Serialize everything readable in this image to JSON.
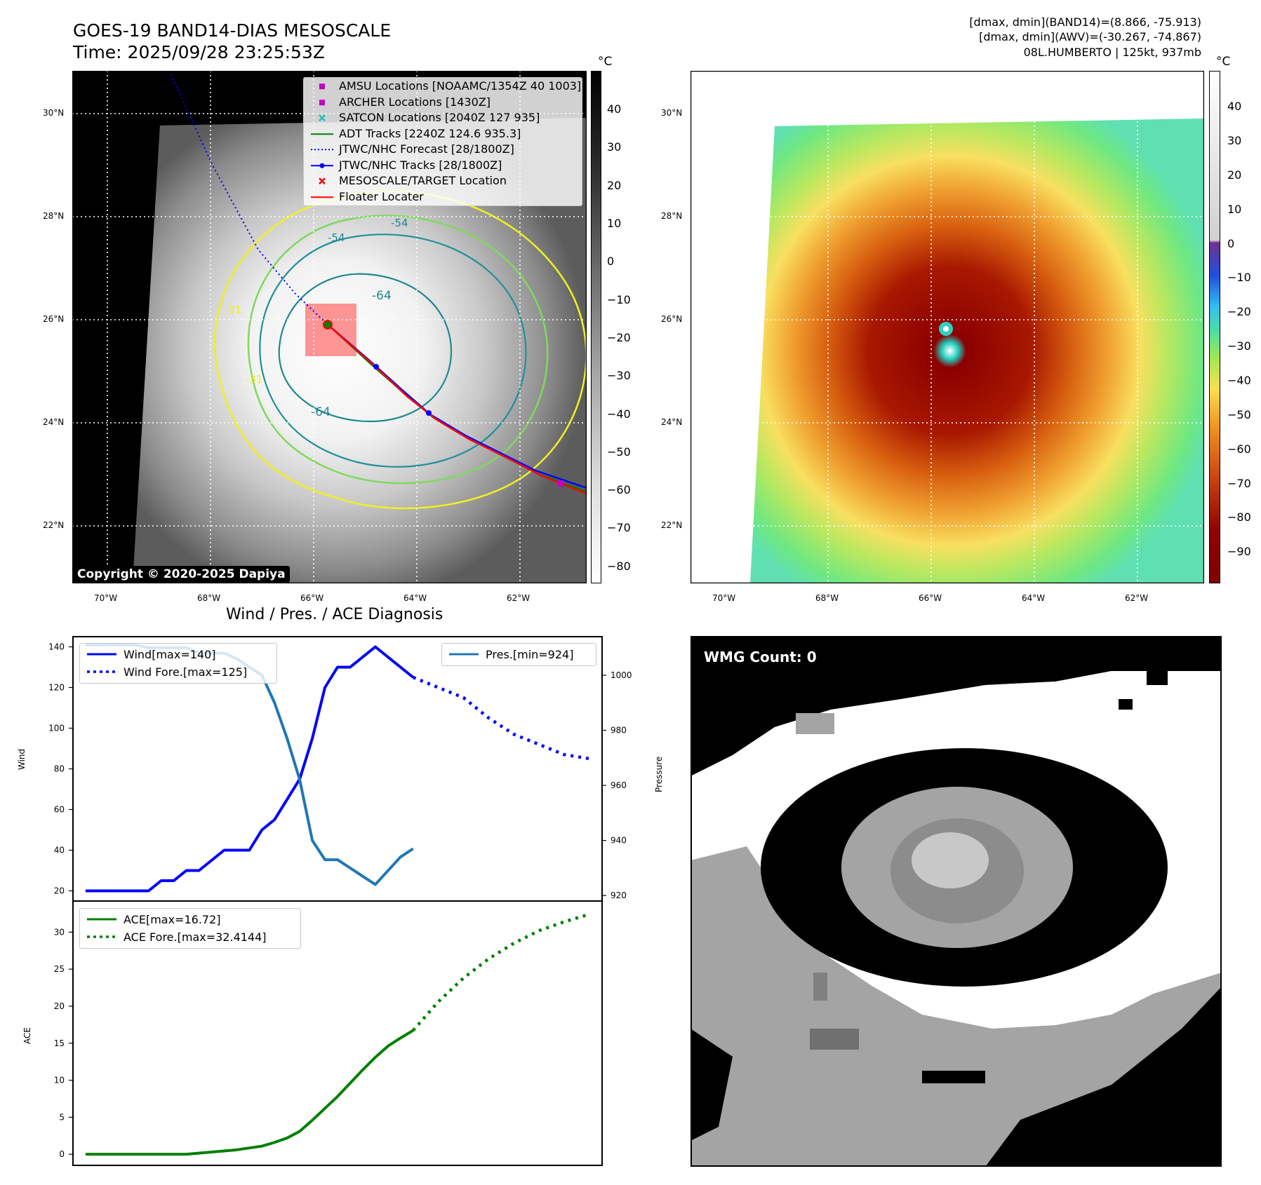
{
  "header": {
    "title_line1": "GOES-19 BAND14-DIAS MESOSCALE",
    "title_line2": "Time: 2025/09/28 23:25:53Z",
    "stats_line1": "[dmax, dmin](BAND14)=(8.866, -75.913)",
    "stats_line2": "[dmax, dmin](AWV)=(-30.267, -74.867)",
    "stats_line3": "08L.HUMBERTO | 125kt, 937mb"
  },
  "map": {
    "lat_ticks": [
      "30°N",
      "28°N",
      "26°N",
      "24°N",
      "22°N"
    ],
    "lon_ticks": [
      "70°W",
      "68°W",
      "66°W",
      "64°W",
      "62°W"
    ],
    "contour_labels": [
      "-54",
      "-64",
      "-64",
      "-31",
      "-31",
      "-54"
    ],
    "legend": [
      {
        "label": "AMSU Locations [NOAAMC/1354Z 40 1003]",
        "symbol": "square",
        "color": "#c000c0"
      },
      {
        "label": "ARCHER Locations [1430Z]",
        "symbol": "square",
        "color": "#c000c0"
      },
      {
        "label": "SATCON Locations [2040Z 127 935]",
        "symbol": "x",
        "color": "#20c0c0"
      },
      {
        "label": "ADT Tracks [2240Z 124.6 935.3]",
        "symbol": "line",
        "color": "#008000"
      },
      {
        "label": "JTWC/NHC Forecast [28/1800Z]",
        "symbol": "dotted",
        "color": "#0000ff"
      },
      {
        "label": "JTWC/NHC Tracks [28/1800Z]",
        "symbol": "line-dot",
        "color": "#0000ff"
      },
      {
        "label": "MESOSCALE/TARGET Location",
        "symbol": "x",
        "color": "#ff0000"
      },
      {
        "label": "Floater Locater",
        "symbol": "line",
        "color": "#ff0000"
      }
    ],
    "copyright": "Copyright © 2020-2025 Dapiya"
  },
  "colorbar_left": {
    "unit": "°C",
    "ticks": [
      "40",
      "30",
      "20",
      "10",
      "0",
      "−10",
      "−20",
      "−30",
      "−40",
      "−50",
      "−60",
      "−70",
      "−80"
    ]
  },
  "colorbar_right": {
    "unit": "°C",
    "ticks": [
      "40",
      "30",
      "20",
      "10",
      "0",
      "−10",
      "−20",
      "−30",
      "−40",
      "−50",
      "−60",
      "−70",
      "−80",
      "−90"
    ]
  },
  "diagnosis": {
    "title": "Wind / Pres. / ACE Diagnosis",
    "wind_ylabel": "Wind",
    "pressure_ylabel": "Pressure",
    "ace_ylabel": "ACE",
    "legend_wind": "Wind[max=140]",
    "legend_wind_fore": "Wind Fore.[max=125]",
    "legend_pres": "Pres.[min=924]",
    "legend_ace": "ACE[max=16.72]",
    "legend_ace_fore": "ACE Fore.[max=32.4144]"
  },
  "wmg": {
    "label": "WMG Count: 0"
  },
  "chart_data": [
    {
      "type": "line",
      "title": "Wind / Pres. / ACE Diagnosis",
      "ylabel": "Wind",
      "ylim": [
        15,
        145
      ],
      "y_ticks": [
        20,
        40,
        60,
        80,
        100,
        120,
        140
      ],
      "series": [
        {
          "name": "Wind[max=140]",
          "color": "#0000ff",
          "style": "solid",
          "x": [
            0,
            1,
            2,
            3,
            4,
            5,
            6,
            7,
            8,
            9,
            10,
            11,
            12,
            13,
            14,
            15,
            16,
            17,
            18,
            19,
            20,
            21,
            22,
            23,
            24,
            25,
            26
          ],
          "values": [
            20,
            20,
            20,
            20,
            20,
            20,
            25,
            25,
            30,
            30,
            35,
            40,
            40,
            40,
            50,
            55,
            65,
            75,
            95,
            120,
            130,
            130,
            135,
            140,
            135,
            130,
            125
          ]
        },
        {
          "name": "Wind Fore.[max=125]",
          "color": "#0000ff",
          "style": "dotted",
          "x": [
            26,
            28,
            30,
            32,
            34,
            36,
            38,
            40
          ],
          "values": [
            125,
            120,
            115,
            105,
            97,
            92,
            87,
            85
          ]
        }
      ],
      "secondary": {
        "ylabel": "Pressure",
        "ylim": [
          918,
          1014
        ],
        "y_ticks": [
          920,
          940,
          960,
          980,
          1000
        ],
        "series": [
          {
            "name": "Pres.[min=924]",
            "color": "#1f77b4",
            "style": "solid",
            "x": [
              0,
              1,
              2,
              3,
              4,
              5,
              6,
              7,
              8,
              9,
              10,
              11,
              12,
              13,
              14,
              15,
              16,
              17,
              18,
              19,
              20,
              21,
              22,
              23,
              24,
              25,
              26
            ],
            "values": [
              1011,
              1011,
              1011,
              1011,
              1011,
              1010,
              1010,
              1010,
              1010,
              1008,
              1008,
              1008,
              1006,
              1003,
              1000,
              990,
              977,
              962,
              940,
              933,
              933,
              930,
              927,
              924,
              929,
              934,
              937
            ]
          }
        ]
      }
    },
    {
      "type": "line",
      "ylabel": "ACE",
      "ylim": [
        -1.5,
        34.2
      ],
      "y_ticks": [
        0,
        5,
        10,
        15,
        20,
        25,
        30
      ],
      "series": [
        {
          "name": "ACE[max=16.72]",
          "color": "#008000",
          "style": "solid",
          "x": [
            0,
            2,
            4,
            6,
            8,
            10,
            12,
            14,
            15,
            16,
            17,
            18,
            19,
            20,
            21,
            22,
            23,
            24,
            25,
            26
          ],
          "values": [
            0,
            0,
            0,
            0,
            0,
            0.3,
            0.6,
            1.1,
            1.6,
            2.2,
            3.1,
            4.6,
            6.2,
            7.8,
            9.6,
            11.4,
            13.1,
            14.6,
            15.7,
            16.72
          ]
        },
        {
          "name": "ACE Fore.[max=32.4144]",
          "color": "#008000",
          "style": "dotted",
          "x": [
            26,
            28,
            30,
            32,
            34,
            36,
            38,
            40
          ],
          "values": [
            16.72,
            20.6,
            23.8,
            26.4,
            28.5,
            30.2,
            31.4,
            32.4144
          ]
        }
      ]
    }
  ]
}
